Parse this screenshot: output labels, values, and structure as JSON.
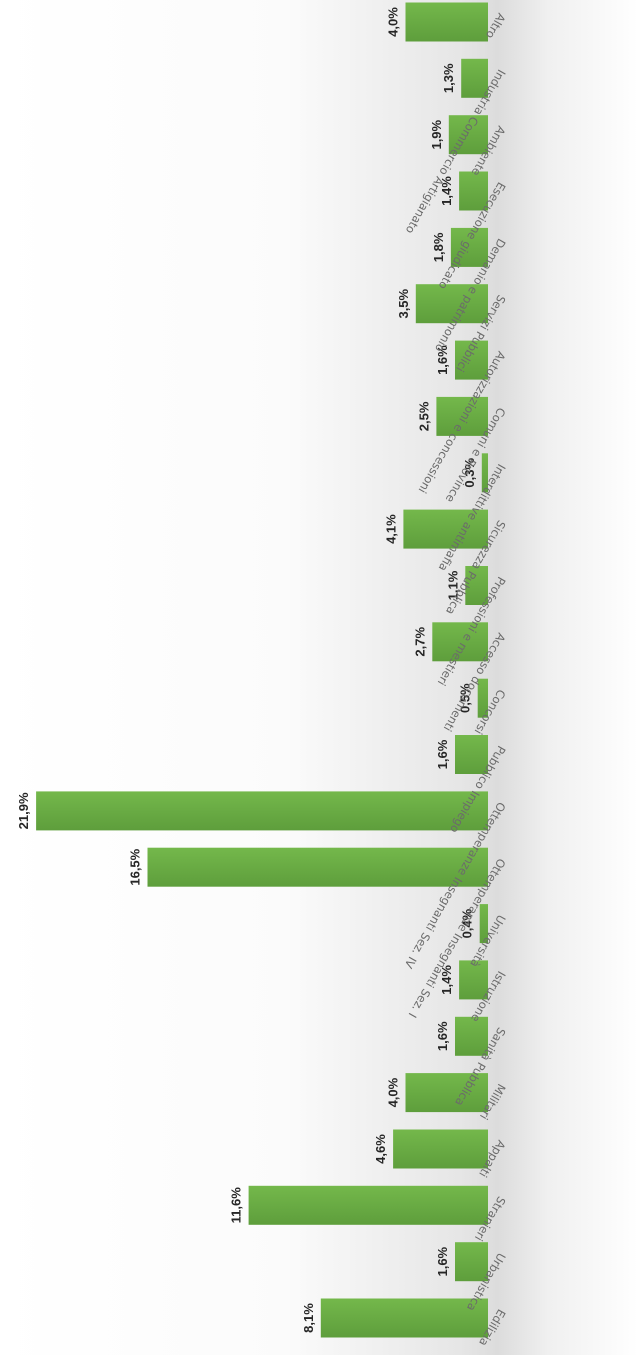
{
  "chart_data": {
    "type": "bar",
    "orientation": "horizontal",
    "value_format": "percent-comma",
    "categories": [
      "Altro",
      "Industria Commercio Artigianato",
      "Ambiente",
      "Esecuzione giudicato",
      "Demanio e patrimonio",
      "Servizi Pubblici",
      "Autorizzazioni e concessioni",
      "Comuni e Province",
      "Interdittive antimafia",
      "Sicurezza Pubblica",
      "Professioni e mestieri",
      "Accesso documenti",
      "Concorsi",
      "Pubblico Impiego",
      "Ottemperanze Insegnanti Sez. IV",
      "Ottemperanze Insegnanti Sez. I",
      "Università",
      "Istruzione",
      "Sanità Pubblica",
      "Militari",
      "Appalti",
      "Stranieri",
      "Urbanistica",
      "Edilizia"
    ],
    "values": [
      4.0,
      1.3,
      1.9,
      1.4,
      1.8,
      3.5,
      1.6,
      2.5,
      0.3,
      4.1,
      1.1,
      2.7,
      0.5,
      1.6,
      21.9,
      16.5,
      0.4,
      1.4,
      1.6,
      4.0,
      4.6,
      11.6,
      1.6,
      8.1
    ],
    "value_labels": [
      "4,0%",
      "1,3%",
      "1,9%",
      "1,4%",
      "1,8%",
      "3,5%",
      "1,6%",
      "2,5%",
      "0,3%",
      "4,1%",
      "1,1%",
      "2,7%",
      "0,5%",
      "1,6%",
      "21,9%",
      "16,5%",
      "0,4%",
      "1,4%",
      "1,6%",
      "4,0%",
      "4,6%",
      "11,6%",
      "1,6%",
      "8,1%"
    ],
    "xlim": [
      0,
      22
    ],
    "grid": false,
    "legend": "none",
    "title": "",
    "xlabel": "",
    "ylabel": "",
    "bar_color": "#6aab45",
    "bar_color_dark": "#5a9a3a"
  }
}
